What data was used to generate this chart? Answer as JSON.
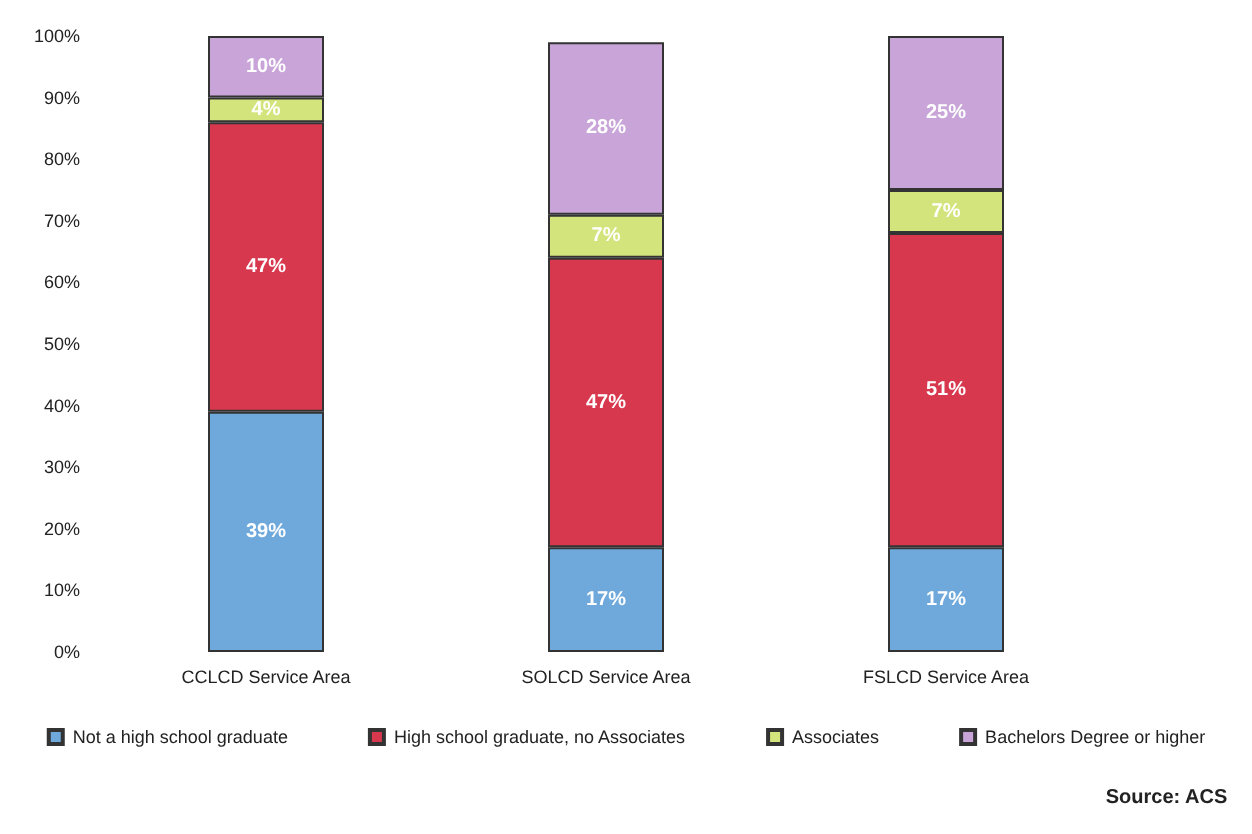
{
  "chart_data": {
    "type": "bar",
    "stacked": true,
    "categories": [
      "CCLCD Service Area",
      "SOLCD Service Area",
      "FSLCD Service Area"
    ],
    "series": [
      {
        "name": "Not a high school graduate",
        "color": "#6fa9dc",
        "values": [
          39,
          17,
          17
        ],
        "value_labels": [
          "39%",
          "17%",
          "17%"
        ]
      },
      {
        "name": "High school graduate, no Associates",
        "color": "#d8384e",
        "values": [
          47,
          47,
          51
        ],
        "value_labels": [
          "47%",
          "47%",
          "51%"
        ]
      },
      {
        "name": "Associates",
        "color": "#d3e47c",
        "values": [
          4,
          7,
          7
        ],
        "value_labels": [
          "4%",
          "7%",
          "7%"
        ]
      },
      {
        "name": "Bachelors Degree or higher",
        "color": "#c8a4d8",
        "values": [
          10,
          28,
          25
        ],
        "value_labels": [
          "10%",
          "28%",
          "25%"
        ]
      }
    ],
    "ylim": [
      0,
      100
    ],
    "yticks": [
      {
        "value": 0,
        "label": "0%"
      },
      {
        "value": 10,
        "label": "10%"
      },
      {
        "value": 20,
        "label": "20%"
      },
      {
        "value": 30,
        "label": "30%"
      },
      {
        "value": 40,
        "label": "40%"
      },
      {
        "value": 50,
        "label": "50%"
      },
      {
        "value": 60,
        "label": "60%"
      },
      {
        "value": 70,
        "label": "70%"
      },
      {
        "value": 80,
        "label": "80%"
      },
      {
        "value": 90,
        "label": "90%"
      },
      {
        "value": 100,
        "label": "100%"
      }
    ],
    "grid": false,
    "legend": "bottom",
    "annotations": [
      "Source: ACS"
    ]
  }
}
